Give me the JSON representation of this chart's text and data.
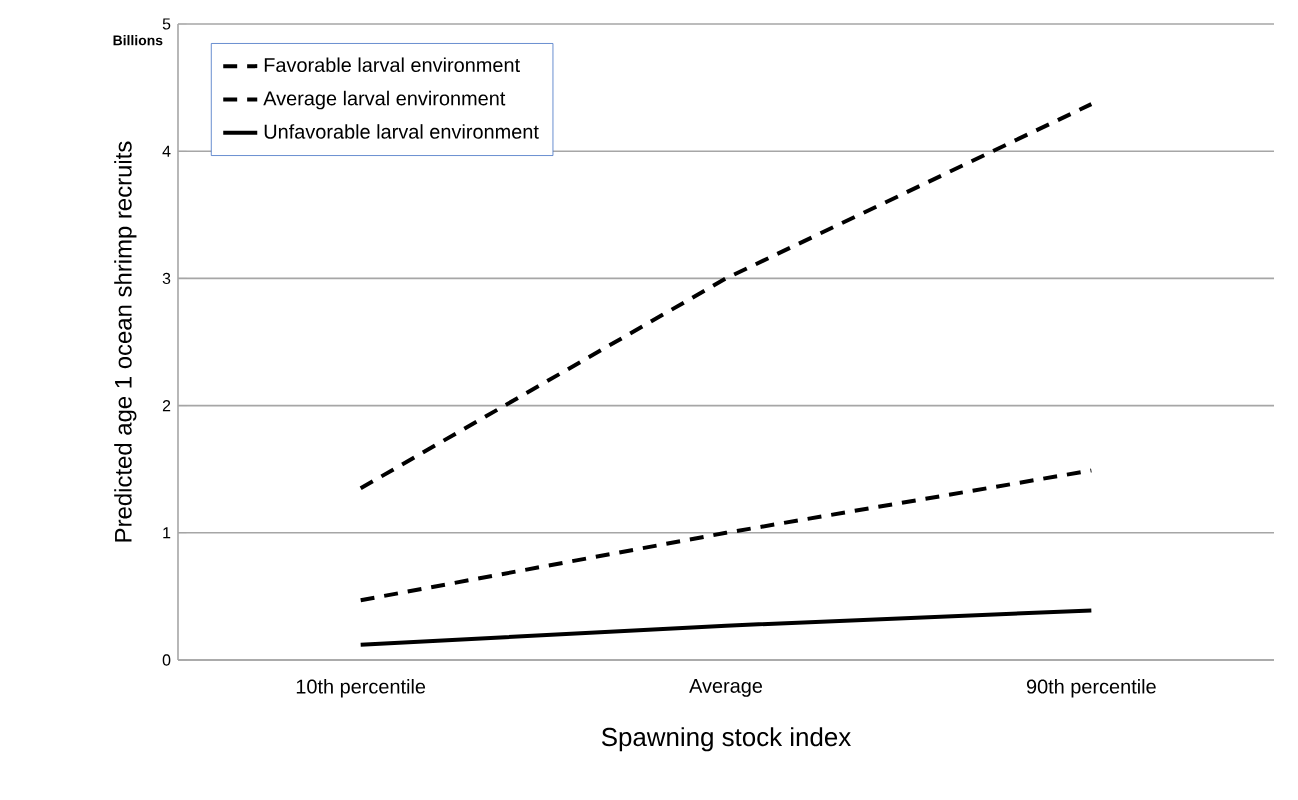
{
  "chart_data": {
    "type": "line",
    "xlabel": "Spawning stock index",
    "ylabel": "Predicted age 1 ocean shrimp recruits",
    "annotations": [
      "Billions"
    ],
    "categories": [
      "10th percentile",
      "Average",
      "90th percentile"
    ],
    "series": [
      {
        "name": "Favorable larval environment",
        "color": "#000000",
        "line_style": "dashed",
        "values": [
          1.35,
          3.0,
          4.37
        ]
      },
      {
        "name": "Average larval environment",
        "color": "#000000",
        "line_style": "dashed",
        "values": [
          0.47,
          1.0,
          1.49
        ]
      },
      {
        "name": "Unfavorable larval environment",
        "color": "#000000",
        "line_style": "solid",
        "values": [
          0.12,
          0.27,
          0.39
        ]
      }
    ],
    "ylim": [
      0,
      5
    ],
    "yticks": [
      0,
      1,
      2,
      3,
      4,
      5
    ],
    "grid": "y",
    "legend": "top left",
    "marker": "none"
  }
}
